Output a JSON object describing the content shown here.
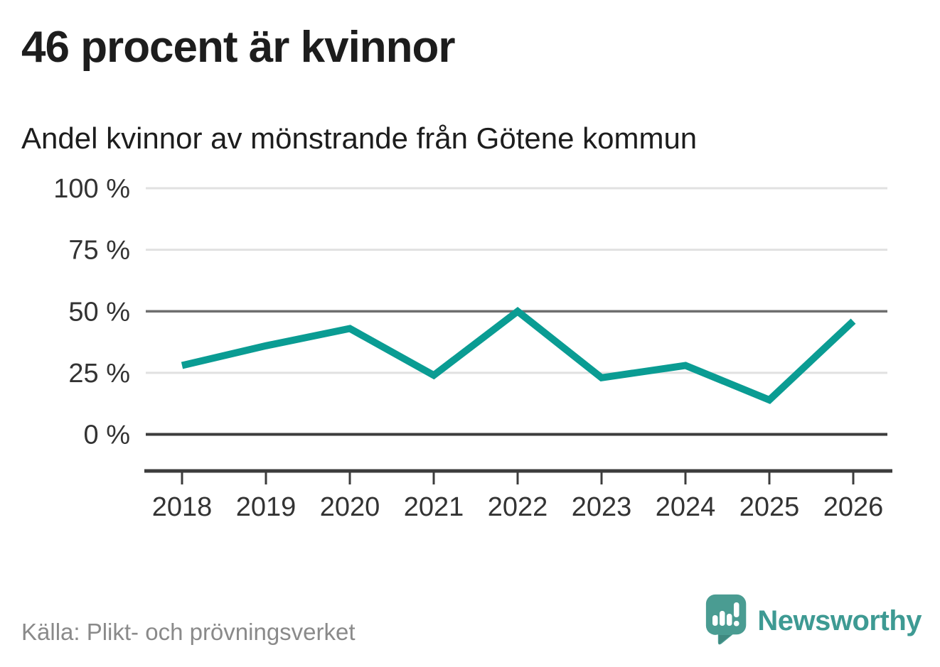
{
  "header": {
    "title": "46 procent är kvinnor",
    "subtitle": "Andel kvinnor av mönstrande från Götene kommun"
  },
  "chart_data": {
    "type": "line",
    "x": [
      2018,
      2019,
      2020,
      2021,
      2022,
      2023,
      2024,
      2025,
      2026
    ],
    "series": [
      {
        "name": "Andel kvinnor av mönstrande",
        "values": [
          28,
          36,
          43,
          24,
          50,
          23,
          28,
          14,
          46
        ]
      }
    ],
    "title": "46 procent är kvinnor",
    "subtitle": "Andel kvinnor av mönstrande från Götene kommun",
    "xlabel": "",
    "ylabel": "",
    "unit": "%",
    "ylim": [
      0,
      100
    ],
    "yticks": [
      0,
      25,
      50,
      75,
      100
    ],
    "ytick_labels": [
      "0 %",
      "25 %",
      "50 %",
      "75 %",
      "100 %"
    ],
    "xtick_labels": [
      "2018",
      "2019",
      "2020",
      "2021",
      "2022",
      "2023",
      "2024",
      "2025",
      "2026"
    ],
    "grid": true,
    "emphasized_gridlines": [
      0,
      50
    ],
    "legend_position": "none",
    "line_color": "#0a9c93"
  },
  "footer": {
    "source": "Källa: Plikt- och prövningsverket",
    "brand": "Newsworthy"
  },
  "icons": {
    "logo": "newsworthy-speech-bubble-bar-chart-icon"
  },
  "colors": {
    "line": "#0a9c93",
    "brand": "#3e9a93",
    "text_dark": "#1d1d1d",
    "axis": "#3c3c3c",
    "source_gray": "#8a8a8a"
  }
}
